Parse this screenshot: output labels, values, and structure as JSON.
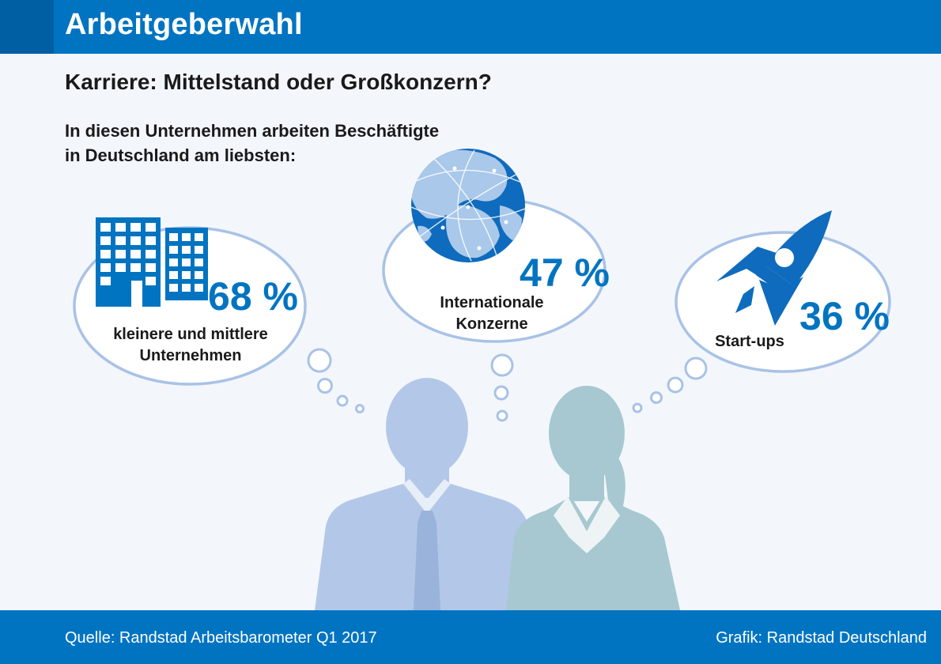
{
  "header": {
    "title": "Arbeitgeberwahl"
  },
  "subtitle": "Karriere: Mittelstand oder Großkonzern?",
  "intro": {
    "line1": "In diesen Unternehmen arbeiten Beschäftigte",
    "line2": "in Deutschland am liebsten:"
  },
  "colors": {
    "brand_blue": "#0074c1",
    "dark_blue": "#005ea3",
    "bubble_stroke": "#a9c2e6",
    "man_silhouette": "#b3c8e8",
    "woman_silhouette": "#a7c8d0"
  },
  "chart_data": {
    "type": "table",
    "unit": "%",
    "categories": [
      "kleinere und mittlere Unternehmen",
      "Internationale Konzerne",
      "Start-ups"
    ],
    "values": [
      68,
      47,
      36
    ],
    "items": [
      {
        "icon": "office-buildings-icon",
        "label_lines": [
          "kleinere und mittlere",
          "Unternehmen"
        ],
        "value": 68,
        "display": "68 %"
      },
      {
        "icon": "globe-icon",
        "label_lines": [
          "Internationale",
          "Konzerne"
        ],
        "value": 47,
        "display": "47 %"
      },
      {
        "icon": "rocket-icon",
        "label_lines": [
          "Start-ups"
        ],
        "value": 36,
        "display": "36 %"
      }
    ]
  },
  "footer": {
    "source": "Quelle: Randstad Arbeitsbarometer Q1 2017",
    "credit": "Grafik: Randstad Deutschland"
  }
}
